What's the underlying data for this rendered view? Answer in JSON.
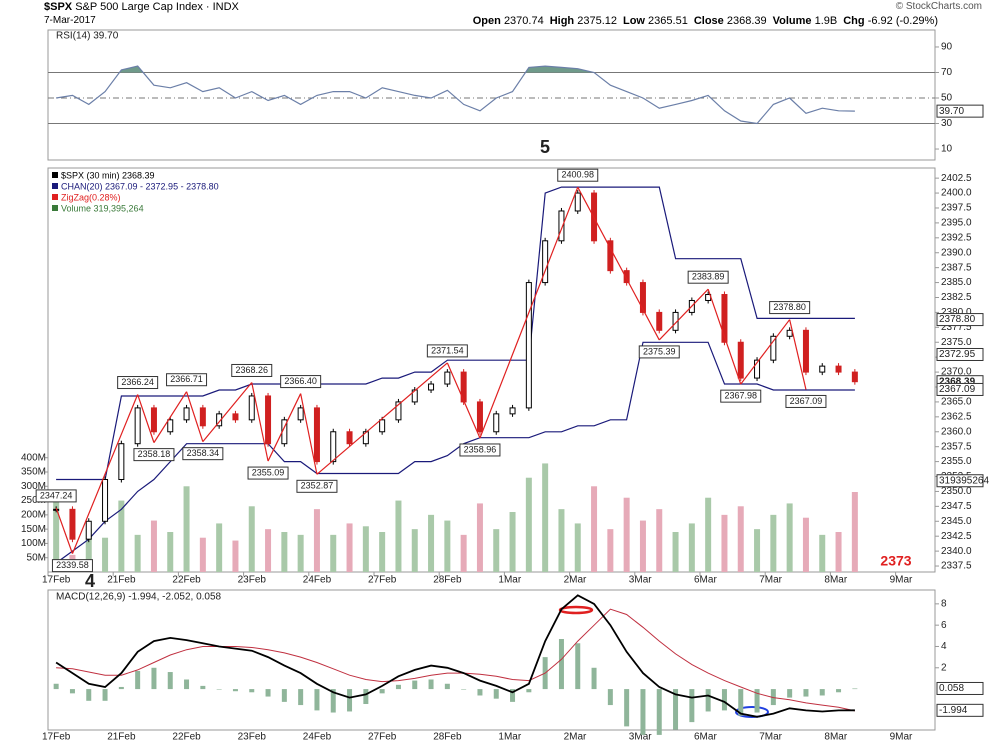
{
  "header": {
    "symbol": "$SPX",
    "name": "S&P 500 Large Cap Index",
    "exchange": "INDX",
    "date": "7-Mar-2017",
    "credit": "© StockCharts.com",
    "quote": [
      {
        "label": "Open",
        "text": "2370.74"
      },
      {
        "label": "High",
        "text": "2375.12"
      },
      {
        "label": "Low",
        "text": "2365.51"
      },
      {
        "label": "Close",
        "text": "2368.39"
      },
      {
        "label": "Volume",
        "text": "1.9B"
      },
      {
        "label": "Chg",
        "text": "-6.92 (-0.29%)"
      }
    ]
  },
  "annotations": {
    "wave5": "5",
    "wave4": "4",
    "target": "2373"
  },
  "chart_data": [
    {
      "type": "line",
      "legend": "RSI(14) 39.70",
      "ylim": [
        1.4,
        103.3
      ],
      "yticks": [
        10,
        30,
        50,
        70,
        90
      ],
      "levels": [
        70,
        50,
        30
      ],
      "values": [
        50,
        52,
        45,
        55,
        72,
        75,
        60,
        58,
        62,
        55,
        58,
        50,
        55,
        48,
        52,
        45,
        52,
        55,
        55,
        50,
        58,
        55,
        52,
        50,
        56,
        45,
        40,
        50,
        55,
        74,
        75,
        74,
        73,
        70,
        60,
        55,
        50,
        42,
        45,
        48,
        52,
        40,
        32,
        30,
        45,
        50,
        38,
        42,
        40,
        39.7
      ],
      "marker": {
        "value": 39.7,
        "label": "39.70"
      }
    },
    {
      "type": "candlestick",
      "categories": [
        "17Feb",
        "21Feb",
        "22Feb",
        "23Feb",
        "24Feb",
        "27Feb",
        "28Feb",
        "1Mar",
        "2Mar",
        "3Mar",
        "6Mar",
        "7Mar",
        "8Mar",
        "9Mar"
      ],
      "legend": [
        "$SPX (30 min) 2368.39",
        "CHAN(20) 2367.09 - 2372.95 - 2378.80",
        "ZigZag(0.28%)",
        "Volume 319,395,264"
      ],
      "ylim": [
        2336.5,
        2404.2
      ],
      "yticks": [
        2337.5,
        {
          "value": 2340,
          "label": "2340.0"
        },
        2342.5,
        {
          "value": 2345,
          "label": "2345.0"
        },
        2347.5,
        {
          "value": 2350,
          "label": "2350.0"
        },
        2352.5,
        {
          "value": 2355,
          "label": "2355.0"
        },
        2357.5,
        {
          "value": 2360,
          "label": "2360.0"
        },
        2362.5,
        {
          "value": 2365,
          "label": "2365.0"
        },
        2367.5,
        {
          "value": 2370,
          "label": "2370.0"
        },
        2372.5,
        {
          "value": 2375,
          "label": "2375.0"
        },
        2377.5,
        {
          "value": 2380,
          "label": "2380.0"
        },
        2382.5,
        {
          "value": 2385,
          "label": "2385.0"
        },
        2387.5,
        {
          "value": 2390,
          "label": "2390.0"
        },
        2392.5,
        {
          "value": 2395,
          "label": "2395.0"
        },
        2397.5,
        {
          "value": 2400,
          "label": "2400.0"
        },
        2402.5
      ],
      "close": [
        2347,
        2342,
        2345,
        2352,
        2358,
        2364,
        2360,
        2362,
        2364,
        2361,
        2363,
        2362,
        2366,
        2358,
        2362,
        2364,
        2355,
        2360,
        2358,
        2360,
        2362,
        2365,
        2367,
        2368,
        2370,
        2365,
        2360,
        2363,
        2364,
        2385,
        2392,
        2397,
        2400,
        2392,
        2387,
        2385,
        2380,
        2377,
        2380,
        2382,
        2383,
        2375,
        2369,
        2372,
        2376,
        2377,
        2370,
        2371,
        2370,
        2368.39
      ],
      "channel_upper": [
        2352,
        2352,
        2352,
        2352,
        2366,
        2366,
        2366,
        2366,
        2366,
        2366,
        2367,
        2367,
        2368,
        2368,
        2368,
        2368,
        2368,
        2368,
        2368,
        2368,
        2369,
        2369,
        2370,
        2370,
        2372,
        2372,
        2372,
        2372,
        2372,
        2372,
        2400,
        2401,
        2401,
        2401,
        2401,
        2401,
        2401,
        2401,
        2389,
        2389,
        2389,
        2389,
        2389,
        2379,
        2379,
        2379,
        2379,
        2379,
        2379,
        2379
      ],
      "channel_lower": [
        2338,
        2340,
        2342,
        2345,
        2347,
        2350,
        2352,
        2355,
        2358,
        2358,
        2358,
        2358,
        2358,
        2358,
        2355,
        2355,
        2353,
        2353,
        2353,
        2353,
        2353,
        2353,
        2355,
        2355,
        2356,
        2358,
        2359,
        2359,
        2359,
        2359,
        2360,
        2360,
        2361,
        2361,
        2362,
        2362,
        2375,
        2375,
        2375,
        2375,
        2375,
        2368,
        2368,
        2368,
        2367,
        2367,
        2367,
        2367,
        2367,
        2367
      ],
      "zigzag": {
        "values": [
          2347.24,
          2339.58,
          null,
          null,
          null,
          2366.24,
          2358.18,
          null,
          2366.71,
          2358.34,
          null,
          null,
          2368.26,
          2355.09,
          null,
          2366.4,
          2352.87,
          null,
          null,
          null,
          null,
          null,
          null,
          null,
          2371.54,
          null,
          2358.96,
          null,
          null,
          null,
          null,
          null,
          2400.98,
          null,
          null,
          null,
          null,
          2375.39,
          null,
          null,
          2383.89,
          null,
          2367.98,
          null,
          null,
          2378.8,
          2367.09,
          null,
          null,
          null
        ],
        "value_labels": [
          "2347.24",
          "2339.58",
          null,
          null,
          null,
          "2366.24",
          "2358.18",
          null,
          "2366.71",
          "2358.34",
          null,
          null,
          "2368.26",
          "2355.09",
          null,
          "2366.40",
          "2352.87",
          null,
          null,
          null,
          null,
          null,
          null,
          null,
          "2371.54",
          null,
          "2358.96",
          null,
          null,
          null,
          null,
          null,
          "2400.98",
          null,
          null,
          null,
          null,
          "2375.39",
          null,
          null,
          "2383.89",
          null,
          "2367.98",
          null,
          null,
          "2378.80",
          "2367.09",
          null,
          null,
          null
        ]
      },
      "markers": [
        {
          "value": 2378.8,
          "label": "2378.80"
        },
        {
          "value": 2372.95,
          "label": "2372.95"
        },
        {
          "value": 2368.39,
          "label": "2368.39"
        },
        {
          "value": 2367.09,
          "label": "2367.09"
        }
      ],
      "volume": {
        "ylim": [
          0,
          1414
        ],
        "yticks": [
          {
            "value": 50,
            "label": "50M"
          },
          {
            "value": 100,
            "label": "100M"
          },
          {
            "value": 150,
            "label": "150M"
          },
          {
            "value": 200,
            "label": "200M"
          },
          {
            "value": 250,
            "label": "250M"
          },
          {
            "value": 300,
            "label": "300M"
          },
          {
            "value": 350,
            "label": "350M"
          },
          {
            "value": 400,
            "label": "400M"
          }
        ],
        "values": [
          280,
          60,
          150,
          120,
          250,
          130,
          180,
          140,
          300,
          120,
          170,
          110,
          230,
          150,
          140,
          130,
          220,
          130,
          170,
          160,
          140,
          250,
          150,
          200,
          180,
          130,
          240,
          150,
          210,
          330,
          380,
          220,
          170,
          300,
          150,
          260,
          180,
          220,
          140,
          170,
          260,
          200,
          230,
          150,
          200,
          240,
          190,
          130,
          140,
          280
        ],
        "marker": {
          "value": 319.395264,
          "label": "319395264"
        }
      }
    },
    {
      "type": "macd",
      "legend": "MACD(12,26,9) -1.994, -2.052, 0.058",
      "ylim": [
        -3.84,
        9.3
      ],
      "yticks": [
        2,
        4,
        6,
        8
      ],
      "macd": [
        2.5,
        1.5,
        0.5,
        0.2,
        1.5,
        3.5,
        4.5,
        4.8,
        4.6,
        4.3,
        4.0,
        3.8,
        3.6,
        3.0,
        2.2,
        1.5,
        0.5,
        -0.3,
        -0.8,
        -0.5,
        0.3,
        1.2,
        1.8,
        2.2,
        2.0,
        1.5,
        0.8,
        0.3,
        -0.3,
        0.5,
        4.5,
        7.5,
        8.8,
        8.0,
        6.0,
        3.5,
        1.5,
        0.2,
        -0.5,
        -0.8,
        -0.6,
        -1.2,
        -2.3,
        -2.6,
        -2.3,
        -1.8,
        -2.0,
        -2.1,
        -2.0,
        -1.994
      ],
      "signal": [
        2.0,
        1.9,
        1.6,
        1.3,
        1.3,
        1.8,
        2.5,
        3.2,
        3.7,
        4.0,
        4.0,
        4.0,
        3.9,
        3.7,
        3.4,
        3.0,
        2.5,
        1.9,
        1.3,
        0.9,
        0.7,
        0.8,
        1.0,
        1.3,
        1.5,
        1.5,
        1.4,
        1.2,
        0.9,
        0.8,
        1.5,
        2.8,
        4.5,
        6.0,
        7.5,
        7.0,
        5.8,
        4.5,
        3.3,
        2.3,
        1.5,
        0.8,
        0.2,
        -0.4,
        -0.8,
        -1.0,
        -1.3,
        -1.5,
        -1.7,
        -2.052
      ],
      "histogram": [
        0.5,
        -0.4,
        -1.1,
        -1.1,
        0.2,
        1.7,
        2.0,
        1.6,
        0.9,
        0.3,
        0,
        -0.2,
        -0.3,
        -0.7,
        -1.2,
        -1.5,
        -2.0,
        -2.2,
        -2.1,
        -1.4,
        -0.4,
        0.4,
        0.8,
        0.9,
        0.5,
        0,
        -0.6,
        -0.9,
        -1.2,
        -0.3,
        3.0,
        4.7,
        4.3,
        2.0,
        -1.5,
        -3.5,
        -4.3,
        -4.3,
        -3.8,
        -3.1,
        -2.1,
        -2.0,
        -2.5,
        -2.2,
        -1.5,
        -0.8,
        -0.7,
        -0.6,
        -0.3,
        0.058
      ],
      "markers": [
        {
          "value": 0.058,
          "label": "0.058"
        },
        {
          "value": -1.994,
          "label": "-1.994"
        }
      ]
    }
  ]
}
